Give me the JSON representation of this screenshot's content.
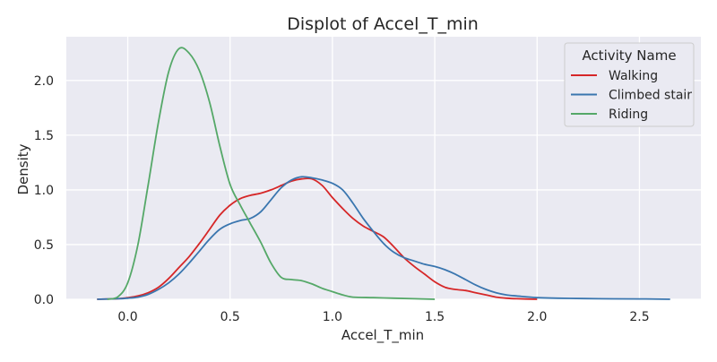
{
  "chart_data": {
    "type": "line",
    "subtype": "kde",
    "title": "Displot of Accel_T_min",
    "xlabel": "Accel_T_min",
    "ylabel": "Density",
    "xlim": [
      -0.3,
      2.8
    ],
    "ylim": [
      0,
      2.4
    ],
    "xticks": [
      "0.0",
      "0.5",
      "1.0",
      "1.5",
      "2.0",
      "2.5"
    ],
    "yticks": [
      "0.0",
      "0.5",
      "1.0",
      "1.5",
      "2.0"
    ],
    "grid": true,
    "background": "#eaeaf2",
    "legend": {
      "title": "Activity Name",
      "position": "top-right"
    },
    "series": [
      {
        "name": "Walking",
        "color": "#d62728",
        "points": [
          [
            -0.15,
            0.0
          ],
          [
            -0.05,
            0.005
          ],
          [
            0.0,
            0.015
          ],
          [
            0.05,
            0.03
          ],
          [
            0.1,
            0.06
          ],
          [
            0.15,
            0.11
          ],
          [
            0.2,
            0.19
          ],
          [
            0.25,
            0.29
          ],
          [
            0.3,
            0.39
          ],
          [
            0.35,
            0.51
          ],
          [
            0.4,
            0.64
          ],
          [
            0.45,
            0.77
          ],
          [
            0.5,
            0.86
          ],
          [
            0.55,
            0.92
          ],
          [
            0.6,
            0.95
          ],
          [
            0.65,
            0.97
          ],
          [
            0.7,
            1.0
          ],
          [
            0.75,
            1.04
          ],
          [
            0.8,
            1.08
          ],
          [
            0.85,
            1.1
          ],
          [
            0.9,
            1.1
          ],
          [
            0.95,
            1.04
          ],
          [
            1.0,
            0.93
          ],
          [
            1.05,
            0.83
          ],
          [
            1.1,
            0.74
          ],
          [
            1.15,
            0.67
          ],
          [
            1.2,
            0.62
          ],
          [
            1.25,
            0.57
          ],
          [
            1.3,
            0.48
          ],
          [
            1.35,
            0.38
          ],
          [
            1.4,
            0.3
          ],
          [
            1.45,
            0.23
          ],
          [
            1.5,
            0.16
          ],
          [
            1.55,
            0.11
          ],
          [
            1.6,
            0.09
          ],
          [
            1.65,
            0.08
          ],
          [
            1.7,
            0.06
          ],
          [
            1.75,
            0.04
          ],
          [
            1.8,
            0.02
          ],
          [
            1.85,
            0.01
          ],
          [
            1.9,
            0.005
          ],
          [
            2.0,
            0.0
          ]
        ]
      },
      {
        "name": "Climbed stair",
        "color": "#3a76af",
        "points": [
          [
            -0.15,
            0.0
          ],
          [
            -0.05,
            0.005
          ],
          [
            0.0,
            0.01
          ],
          [
            0.05,
            0.02
          ],
          [
            0.1,
            0.045
          ],
          [
            0.15,
            0.09
          ],
          [
            0.2,
            0.15
          ],
          [
            0.25,
            0.23
          ],
          [
            0.3,
            0.33
          ],
          [
            0.35,
            0.44
          ],
          [
            0.4,
            0.55
          ],
          [
            0.45,
            0.64
          ],
          [
            0.5,
            0.69
          ],
          [
            0.55,
            0.72
          ],
          [
            0.6,
            0.74
          ],
          [
            0.65,
            0.8
          ],
          [
            0.7,
            0.91
          ],
          [
            0.75,
            1.02
          ],
          [
            0.8,
            1.09
          ],
          [
            0.85,
            1.12
          ],
          [
            0.9,
            1.11
          ],
          [
            0.95,
            1.09
          ],
          [
            1.0,
            1.06
          ],
          [
            1.05,
            1.0
          ],
          [
            1.1,
            0.88
          ],
          [
            1.15,
            0.74
          ],
          [
            1.2,
            0.62
          ],
          [
            1.25,
            0.51
          ],
          [
            1.3,
            0.43
          ],
          [
            1.35,
            0.38
          ],
          [
            1.4,
            0.35
          ],
          [
            1.45,
            0.32
          ],
          [
            1.5,
            0.3
          ],
          [
            1.55,
            0.27
          ],
          [
            1.6,
            0.23
          ],
          [
            1.65,
            0.18
          ],
          [
            1.7,
            0.13
          ],
          [
            1.75,
            0.09
          ],
          [
            1.8,
            0.06
          ],
          [
            1.85,
            0.04
          ],
          [
            1.9,
            0.03
          ],
          [
            2.0,
            0.015
          ],
          [
            2.1,
            0.01
          ],
          [
            2.3,
            0.005
          ],
          [
            2.5,
            0.003
          ],
          [
            2.65,
            0.0
          ]
        ]
      },
      {
        "name": "Riding",
        "color": "#55a868",
        "points": [
          [
            -0.1,
            0.0
          ],
          [
            -0.05,
            0.02
          ],
          [
            0.0,
            0.15
          ],
          [
            0.05,
            0.5
          ],
          [
            0.1,
            1.05
          ],
          [
            0.15,
            1.62
          ],
          [
            0.2,
            2.08
          ],
          [
            0.25,
            2.29
          ],
          [
            0.3,
            2.25
          ],
          [
            0.35,
            2.09
          ],
          [
            0.4,
            1.8
          ],
          [
            0.45,
            1.4
          ],
          [
            0.5,
            1.05
          ],
          [
            0.55,
            0.86
          ],
          [
            0.6,
            0.69
          ],
          [
            0.65,
            0.52
          ],
          [
            0.7,
            0.33
          ],
          [
            0.75,
            0.2
          ],
          [
            0.8,
            0.18
          ],
          [
            0.85,
            0.17
          ],
          [
            0.9,
            0.14
          ],
          [
            0.95,
            0.1
          ],
          [
            1.0,
            0.07
          ],
          [
            1.05,
            0.04
          ],
          [
            1.1,
            0.02
          ],
          [
            1.2,
            0.015
          ],
          [
            1.3,
            0.01
          ],
          [
            1.4,
            0.005
          ],
          [
            1.5,
            0.0
          ]
        ]
      }
    ]
  }
}
